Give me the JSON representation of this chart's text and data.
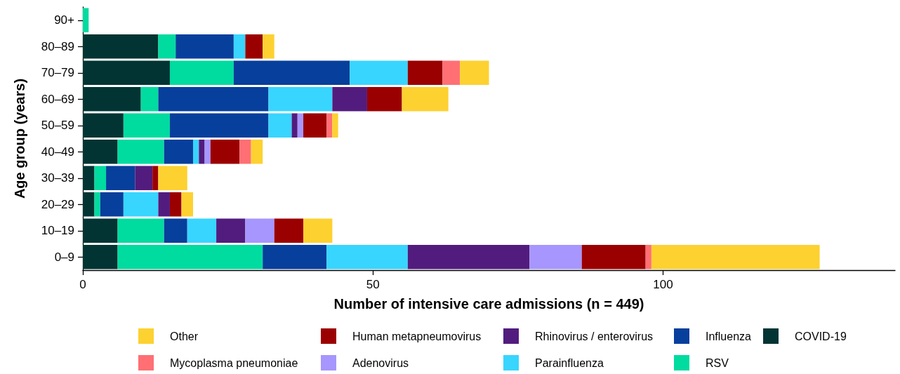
{
  "chart_data": {
    "type": "bar",
    "orientation": "horizontal",
    "stacked": true,
    "xlabel": "Number of intensive care admissions (n = 449)",
    "ylabel": "Age group (years)",
    "categories": [
      "90+",
      "80–89",
      "70–79",
      "60–69",
      "50–59",
      "40–49",
      "30–39",
      "20–29",
      "10–19",
      "0–9"
    ],
    "series": [
      {
        "name": "COVID-19",
        "color": "#023434",
        "values": [
          0,
          13,
          15,
          10,
          7,
          6,
          2,
          2,
          6,
          6
        ]
      },
      {
        "name": "RSV",
        "color": "#00dba0",
        "values": [
          1,
          3,
          11,
          3,
          8,
          8,
          2,
          1,
          8,
          25
        ]
      },
      {
        "name": "Influenza",
        "color": "#073f9c",
        "values": [
          0,
          10,
          20,
          19,
          17,
          5,
          5,
          4,
          4,
          11
        ]
      },
      {
        "name": "Parainfluenza",
        "color": "#38d5ff",
        "values": [
          0,
          2,
          10,
          11,
          4,
          1,
          0,
          6,
          5,
          14
        ]
      },
      {
        "name": "Rhinovirus / enterovirus",
        "color": "#521c7e",
        "values": [
          0,
          0,
          0,
          6,
          1,
          1,
          3,
          2,
          5,
          21
        ]
      },
      {
        "name": "Adenovirus",
        "color": "#a696fd",
        "values": [
          0,
          0,
          0,
          0,
          1,
          1,
          0,
          0,
          5,
          9
        ]
      },
      {
        "name": "Human metapneumovirus",
        "color": "#9b0000",
        "values": [
          0,
          3,
          6,
          6,
          4,
          5,
          1,
          2,
          5,
          11
        ]
      },
      {
        "name": "Mycoplasma pneumoniae",
        "color": "#ff6f73",
        "values": [
          0,
          0,
          3,
          0,
          1,
          2,
          0,
          0,
          0,
          1
        ]
      },
      {
        "name": "Other",
        "color": "#fdd130",
        "values": [
          0,
          2,
          5,
          8,
          1,
          2,
          5,
          2,
          5,
          29
        ]
      }
    ],
    "xlim": [
      0,
      140
    ],
    "xticks": [
      0,
      50,
      100
    ],
    "grid": false,
    "legend": "bottom"
  }
}
